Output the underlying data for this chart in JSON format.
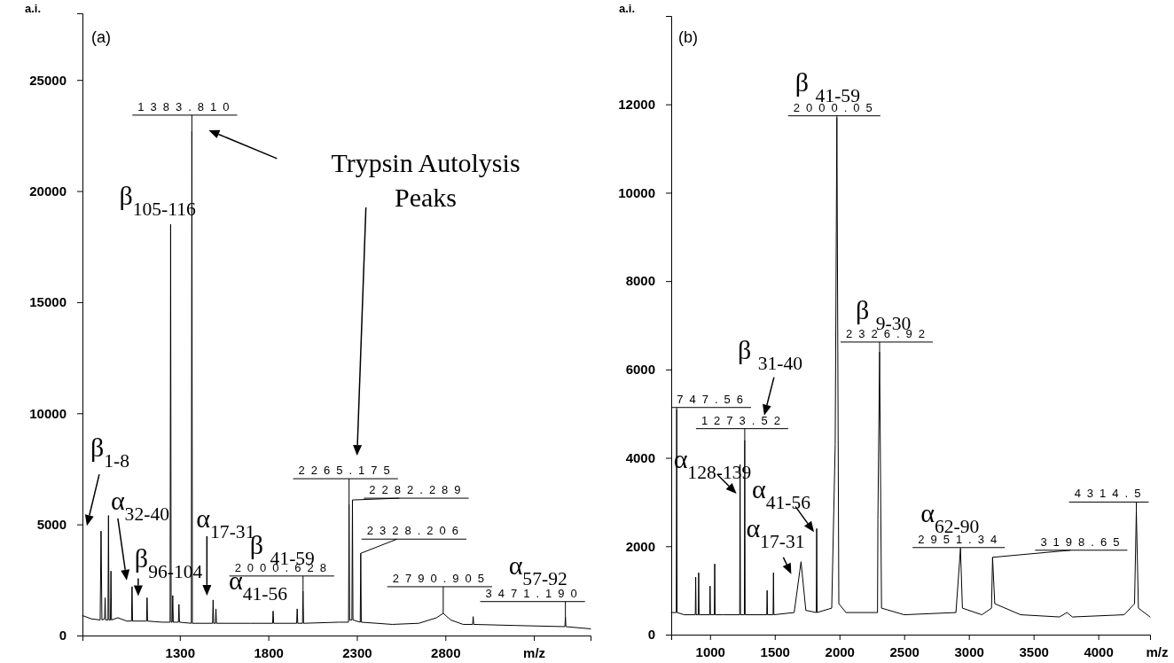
{
  "chart_data": [
    {
      "type": "line",
      "title": "(a)",
      "ylabel": "a.i.",
      "color": "#000000",
      "xlim": [
        750,
        3620
      ],
      "ylim": [
        0,
        28000
      ],
      "xticks": [
        1300,
        1800,
        2300,
        2800,
        {
          "value": 3300,
          "label": "m/z"
        }
      ],
      "yticks": [
        0,
        5000,
        10000,
        15000,
        20000,
        25000
      ],
      "x": [
        750,
        800,
        850,
        855,
        860,
        875,
        878,
        881,
        894,
        897,
        900,
        908,
        911,
        914,
        950,
        1000,
        1027,
        1030,
        1033,
        1112,
        1115,
        1118,
        1200,
        1245,
        1248,
        1251,
        1257,
        1260,
        1263,
        1292,
        1295,
        1298,
        1365,
        1368,
        1371,
        1485,
        1488,
        1491,
        1501,
        1504,
        1507,
        1700,
        1824,
        1827,
        1830,
        1960,
        1963,
        1966,
        1993,
        1996,
        1999,
        2200,
        2253,
        2256,
        2259,
        2272,
        2275,
        2278,
        2319,
        2322,
        2325,
        2500,
        2650,
        2750,
        2788,
        2830,
        2900,
        2954,
        2957,
        2960,
        3200,
        3475,
        3478,
        3481,
        3620
      ],
      "values": [
        900,
        750,
        700,
        4700,
        700,
        750,
        1700,
        700,
        700,
        5400,
        700,
        700,
        2900,
        700,
        800,
        650,
        650,
        2200,
        650,
        650,
        1700,
        650,
        600,
        600,
        18500,
        600,
        600,
        1800,
        600,
        600,
        1400,
        600,
        550,
        22700,
        550,
        550,
        1600,
        550,
        550,
        1200,
        550,
        550,
        550,
        1100,
        550,
        550,
        1200,
        550,
        550,
        2000,
        550,
        600,
        600,
        5900,
        700,
        700,
        6100,
        700,
        600,
        3700,
        600,
        500,
        550,
        800,
        1000,
        700,
        500,
        500,
        850,
        500,
        450,
        400,
        850,
        400,
        300
      ],
      "annotations": [
        {
          "text": "1383.810",
          "x": 1368,
          "y": 22700
        },
        {
          "text": "2265.175",
          "x": 2256,
          "y": 5900
        },
        {
          "text": "2282.289",
          "x": 2275,
          "y": 6100
        },
        {
          "text": "2328.206",
          "x": 2322,
          "y": 3700
        },
        {
          "text": "2000.628",
          "x": 1996,
          "y": 2000
        },
        {
          "text": "2790.905",
          "x": 2788,
          "y": 1000
        },
        {
          "text": "3471.190",
          "x": 3478,
          "y": 850
        },
        {
          "text": "β$_{105-116}$",
          "x": 1248,
          "y": 18500
        },
        {
          "text": "β$_{1-8}$",
          "x": 855,
          "y": 4700
        },
        {
          "text": "α$_{32-40}$",
          "x": 1030,
          "y": 2200
        },
        {
          "text": "β$_{96-104}$",
          "x": 1115,
          "y": 1700
        },
        {
          "text": "α$_{17-31}$",
          "x": 1488,
          "y": 1600
        },
        {
          "text": "β $_{41-59}$",
          "x": 1996,
          "y": 2000
        },
        {
          "text": "α$_{41-56}$",
          "x": 1827,
          "y": 1100
        },
        {
          "text": "α$_{57-92}$",
          "x": 3478,
          "y": 850
        },
        "Trypsin Autolysis Peaks"
      ]
    },
    {
      "type": "line",
      "title": "(b)",
      "ylabel": "a.i.",
      "xlabel": "m/z",
      "color": "#000000",
      "xlim": [
        700,
        4400
      ],
      "ylim": [
        0,
        14000
      ],
      "xticks": [
        1000,
        1500,
        2000,
        2500,
        3000,
        3500,
        4000
      ],
      "yticks": [
        0,
        2000,
        4000,
        6000,
        8000,
        10000,
        12000
      ],
      "x": [
        700,
        739,
        742,
        745,
        800,
        886,
        889,
        892,
        909,
        912,
        915,
        997,
        1000,
        1003,
        1033,
        1036,
        1039,
        1100,
        1229,
        1232,
        1235,
        1265,
        1268,
        1271,
        1438,
        1441,
        1444,
        1487,
        1490,
        1493,
        1650,
        1703,
        1740,
        1821,
        1824,
        1827,
        1940,
        1967,
        1980,
        1995,
        2050,
        2294,
        2297,
        2310,
        2325,
        2500,
        2900,
        2935,
        2950,
        3100,
        3175,
        3183,
        3200,
        3400,
        3700,
        3758,
        3800,
        4200,
        4280,
        4294,
        4310,
        4400
      ],
      "values": [
        500,
        500,
        5100,
        500,
        450,
        450,
        1300,
        450,
        450,
        1400,
        450,
        450,
        1100,
        450,
        450,
        1600,
        450,
        450,
        450,
        3850,
        450,
        450,
        4400,
        450,
        450,
        1000,
        450,
        450,
        1400,
        450,
        500,
        1650,
        550,
        500,
        2400,
        500,
        600,
        4300,
        11700,
        700,
        500,
        500,
        2600,
        6400,
        600,
        450,
        500,
        1950,
        600,
        450,
        600,
        1750,
        700,
        450,
        400,
        500,
        400,
        450,
        700,
        2800,
        600,
        400
      ],
      "annotations": [
        {
          "text": "747.56",
          "x": 742,
          "y": 5100
        },
        {
          "text": "1273.52",
          "x": 1268,
          "y": 4400
        },
        {
          "text": "2000.05",
          "x": 1980,
          "y": 11700
        },
        {
          "text": "2326.92",
          "x": 2310,
          "y": 6400
        },
        {
          "text": "2951.34",
          "x": 2935,
          "y": 1950
        },
        {
          "text": "3198.65",
          "x": 3183,
          "y": 1750
        },
        {
          "text": "4314.5",
          "x": 4294,
          "y": 2800
        },
        {
          "text": "β $_{41-59}$",
          "x": 1980,
          "y": 11700
        },
        {
          "text": "β $_{9-30}$",
          "x": 2310,
          "y": 6400
        },
        {
          "text": "β $_{31-40}$",
          "x": 1268,
          "y": 4400
        },
        {
          "text": "α$_{128-139}$",
          "x": 1232,
          "y": 3850
        },
        {
          "text": "α$_{41-56}$",
          "x": 1824,
          "y": 2400
        },
        {
          "text": "α$_{17-31}$",
          "x": 1703,
          "y": 1650
        },
        {
          "text": "α$_{62-90}$",
          "x": 2935,
          "y": 1950
        }
      ]
    }
  ]
}
